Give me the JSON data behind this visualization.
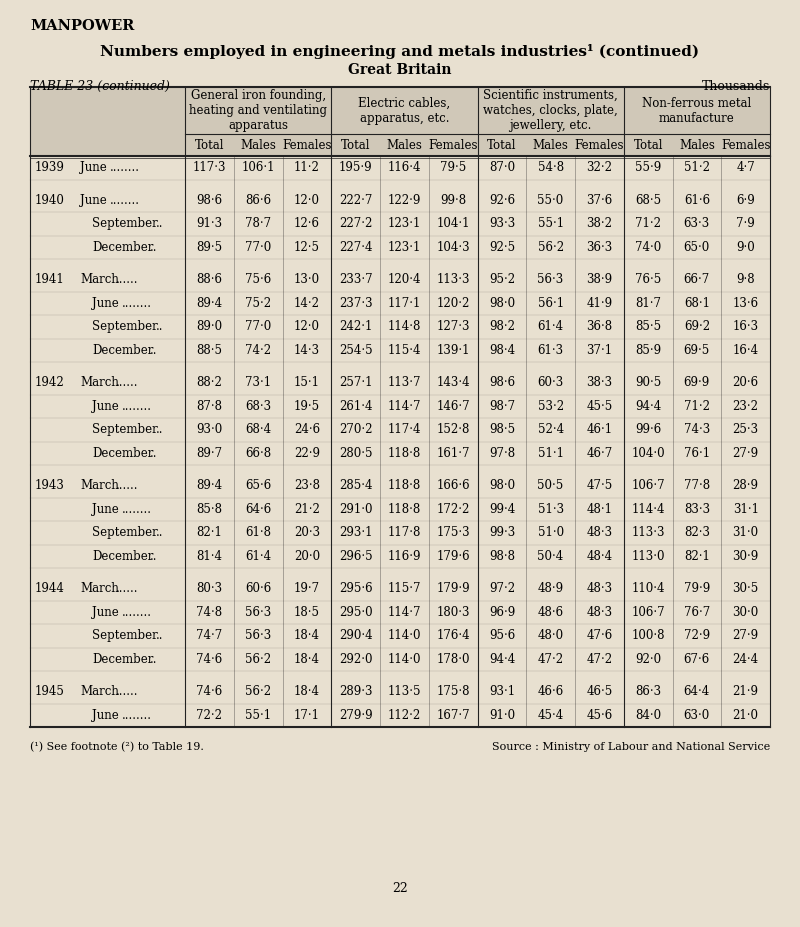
{
  "page_label": "MANPOWER",
  "title_main": "Numbers employed in engineering and metals industries",
  "title_super": "(1)",
  "title_cont": " (continued)",
  "subtitle": "Great Britain",
  "table_label": "TABLE 23 (continued)",
  "table_unit": "Thousands",
  "group_labels": [
    "General iron founding,\nheating and ventilating\napparatus",
    "Electric cables,\napparatus, etc.",
    "Scientific instruments,\nwatches, clocks, plate,\njewellery, etc.",
    "Non-ferrous metal\nmanufacture"
  ],
  "sub_labels": [
    "Total",
    "Males",
    "Females",
    "Total",
    "Males",
    "Females",
    "Total",
    "Males",
    "Females",
    "Total",
    "Males",
    "Females"
  ],
  "rows": [
    {
      "year": "1939",
      "period": "June",
      "dots": "........",
      "data": [
        117.3,
        106.1,
        11.2,
        195.9,
        116.4,
        79.5,
        87.0,
        54.8,
        32.2,
        55.9,
        51.2,
        4.7
      ]
    },
    {
      "year": "1940",
      "period": "June",
      "dots": "........",
      "data": [
        98.6,
        86.6,
        12.0,
        222.7,
        122.9,
        99.8,
        92.6,
        55.0,
        37.6,
        68.5,
        61.6,
        6.9
      ]
    },
    {
      "year": "",
      "period": "September",
      "dots": "..",
      "data": [
        91.3,
        78.7,
        12.6,
        227.2,
        123.1,
        104.1,
        93.3,
        55.1,
        38.2,
        71.2,
        63.3,
        7.9
      ]
    },
    {
      "year": "",
      "period": "December",
      "dots": "..",
      "data": [
        89.5,
        77.0,
        12.5,
        227.4,
        123.1,
        104.3,
        92.5,
        56.2,
        36.3,
        74.0,
        65.0,
        9.0
      ]
    },
    {
      "year": "1941",
      "period": "March",
      "dots": "......",
      "data": [
        88.6,
        75.6,
        13.0,
        233.7,
        120.4,
        113.3,
        95.2,
        56.3,
        38.9,
        76.5,
        66.7,
        9.8
      ]
    },
    {
      "year": "",
      "period": "June",
      "dots": "........",
      "data": [
        89.4,
        75.2,
        14.2,
        237.3,
        117.1,
        120.2,
        98.0,
        56.1,
        41.9,
        81.7,
        68.1,
        13.6
      ]
    },
    {
      "year": "",
      "period": "September",
      "dots": "..",
      "data": [
        89.0,
        77.0,
        12.0,
        242.1,
        114.8,
        127.3,
        98.2,
        61.4,
        36.8,
        85.5,
        69.2,
        16.3
      ]
    },
    {
      "year": "",
      "period": "December",
      "dots": "..",
      "data": [
        88.5,
        74.2,
        14.3,
        254.5,
        115.4,
        139.1,
        98.4,
        61.3,
        37.1,
        85.9,
        69.5,
        16.4
      ]
    },
    {
      "year": "1942",
      "period": "March",
      "dots": "......",
      "data": [
        88.2,
        73.1,
        15.1,
        257.1,
        113.7,
        143.4,
        98.6,
        60.3,
        38.3,
        90.5,
        69.9,
        20.6
      ]
    },
    {
      "year": "",
      "period": "June",
      "dots": "........",
      "data": [
        87.8,
        68.3,
        19.5,
        261.4,
        114.7,
        146.7,
        98.7,
        53.2,
        45.5,
        94.4,
        71.2,
        23.2
      ]
    },
    {
      "year": "",
      "period": "September",
      "dots": "..",
      "data": [
        93.0,
        68.4,
        24.6,
        270.2,
        117.4,
        152.8,
        98.5,
        52.4,
        46.1,
        99.6,
        74.3,
        25.3
      ]
    },
    {
      "year": "",
      "period": "December",
      "dots": "..",
      "data": [
        89.7,
        66.8,
        22.9,
        280.5,
        118.8,
        161.7,
        97.8,
        51.1,
        46.7,
        104.0,
        76.1,
        27.9
      ]
    },
    {
      "year": "1943",
      "period": "March",
      "dots": "......",
      "data": [
        89.4,
        65.6,
        23.8,
        285.4,
        118.8,
        166.6,
        98.0,
        50.5,
        47.5,
        106.7,
        77.8,
        28.9
      ]
    },
    {
      "year": "",
      "period": "June",
      "dots": "........",
      "data": [
        85.8,
        64.6,
        21.2,
        291.0,
        118.8,
        172.2,
        99.4,
        51.3,
        48.1,
        114.4,
        83.3,
        31.1
      ]
    },
    {
      "year": "",
      "period": "September",
      "dots": "..",
      "data": [
        82.1,
        61.8,
        20.3,
        293.1,
        117.8,
        175.3,
        99.3,
        51.0,
        48.3,
        113.3,
        82.3,
        31.0
      ]
    },
    {
      "year": "",
      "period": "December",
      "dots": "..",
      "data": [
        81.4,
        61.4,
        20.0,
        296.5,
        116.9,
        179.6,
        98.8,
        50.4,
        48.4,
        113.0,
        82.1,
        30.9
      ]
    },
    {
      "year": "1944",
      "period": "March",
      "dots": "......",
      "data": [
        80.3,
        60.6,
        19.7,
        295.6,
        115.7,
        179.9,
        97.2,
        48.9,
        48.3,
        110.4,
        79.9,
        30.5
      ]
    },
    {
      "year": "",
      "period": "June",
      "dots": "........",
      "data": [
        74.8,
        56.3,
        18.5,
        295.0,
        114.7,
        180.3,
        96.9,
        48.6,
        48.3,
        106.7,
        76.7,
        30.0
      ]
    },
    {
      "year": "",
      "period": "September",
      "dots": "..",
      "data": [
        74.7,
        56.3,
        18.4,
        290.4,
        114.0,
        176.4,
        95.6,
        48.0,
        47.6,
        100.8,
        72.9,
        27.9
      ]
    },
    {
      "year": "",
      "period": "December",
      "dots": "..",
      "data": [
        74.6,
        56.2,
        18.4,
        292.0,
        114.0,
        178.0,
        94.4,
        47.2,
        47.2,
        92.0,
        67.6,
        24.4
      ]
    },
    {
      "year": "1945",
      "period": "March",
      "dots": "......",
      "data": [
        74.6,
        56.2,
        18.4,
        289.3,
        113.5,
        175.8,
        93.1,
        46.6,
        46.5,
        86.3,
        64.4,
        21.9
      ]
    },
    {
      "year": "",
      "period": "June",
      "dots": "........",
      "data": [
        72.2,
        55.1,
        17.1,
        279.9,
        112.2,
        167.7,
        91.0,
        45.4,
        45.6,
        84.0,
        63.0,
        21.0
      ]
    }
  ],
  "footnote": "(¹) See footnote (²) to Table 19.",
  "source": "Source : Ministry of Labour and National Service",
  "page_number": "22",
  "bg_color": "#e8e0d0",
  "header_shade": "#d0c8b8",
  "line_color": "#222222"
}
